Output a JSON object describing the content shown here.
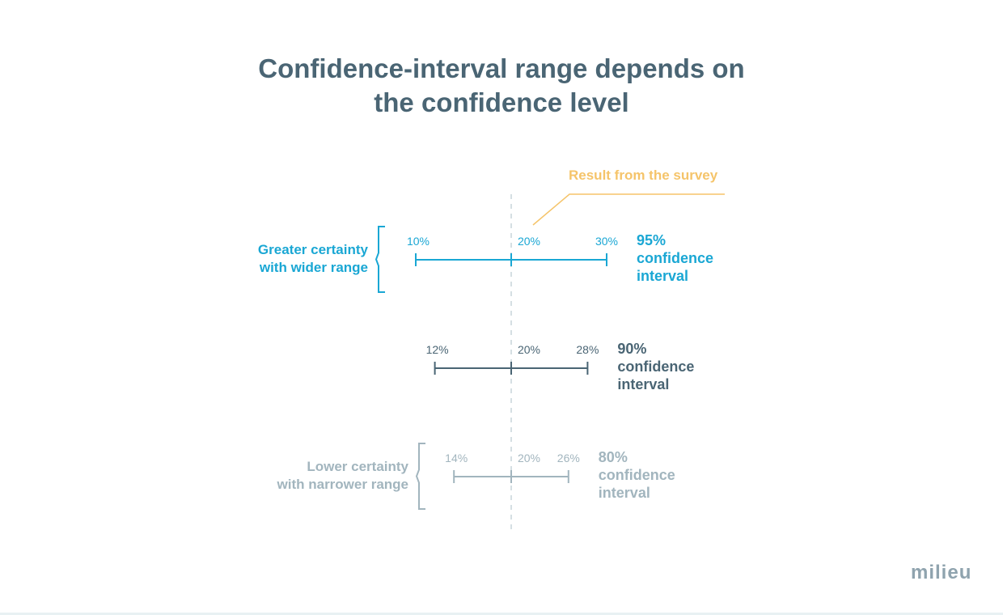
{
  "title": {
    "line1": "Confidence-interval range depends on",
    "line2": "the confidence level"
  },
  "callout": "Result from the survey",
  "intervals": [
    {
      "low_label": "10%",
      "mid_label": "20%",
      "high_label": "30%",
      "level_label": [
        "95%",
        "confidence",
        "interval"
      ],
      "low": 10,
      "mid": 20,
      "high": 30,
      "color": "#1aa7d4"
    },
    {
      "low_label": "12%",
      "mid_label": "20%",
      "high_label": "28%",
      "level_label": [
        "90%",
        "confidence",
        "interval"
      ],
      "low": 12,
      "mid": 20,
      "high": 28,
      "color": "#4a6574"
    },
    {
      "low_label": "14%",
      "mid_label": "20%",
      "high_label": "26%",
      "level_label": [
        "80%",
        "confidence",
        "interval"
      ],
      "low": 14,
      "mid": 20,
      "high": 26,
      "color": "#a2b5be"
    }
  ],
  "greater": {
    "line1": "Greater certainty",
    "line2": "with wider range",
    "color": "#1aa7d4"
  },
  "lower": {
    "line1": "Lower certainty",
    "line2": "with narrower range",
    "color": "#a2b5be"
  },
  "brand": "milieu",
  "colors": {
    "title": "#4a6574",
    "callout": "#f5c46a",
    "reference_line": "#d5dfe3"
  }
}
